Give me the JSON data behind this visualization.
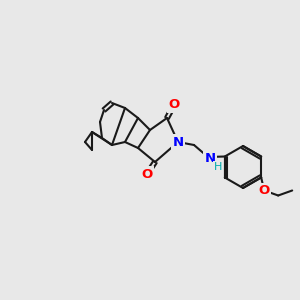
{
  "background_color": "#e8e8e8",
  "bond_color": "#1a1a1a",
  "atom_colors": {
    "O": "#ff0000",
    "N": "#0000ff",
    "H": "#00aaaa",
    "C": "#1a1a1a"
  },
  "figsize": [
    3.0,
    3.0
  ],
  "dpi": 100
}
